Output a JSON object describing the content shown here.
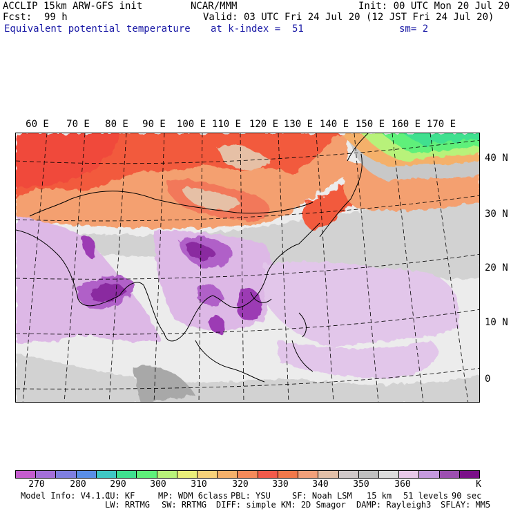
{
  "header": {
    "model": "ACCLIP 15km ARW-GFS init",
    "org": "NCAR/MMM",
    "init": "Init: 00 UTC Mon 20 Jul 20",
    "fcst_label": "Fcst:",
    "fcst_value": "99 h",
    "valid": "Valid: 03 UTC Fri 24 Jul 20 (12 JST Fri 24 Jul 20)",
    "field": "Equivalent potential temperature",
    "level": "at k-index =  51",
    "smooth": "sm= 2"
  },
  "map": {
    "lon_labels": [
      "60 E",
      "70 E",
      "80 E",
      "90 E",
      "100 E",
      "110 E",
      "120 E",
      "130 E",
      "140 E",
      "150 E",
      "160 E",
      "170 E"
    ],
    "lat_labels": [
      "40 N",
      "30 N",
      "20 N",
      "10 N",
      "0"
    ]
  },
  "colorbar": {
    "colors": [
      "#c55ccf",
      "#a46fd9",
      "#7f7fe0",
      "#5a8ee6",
      "#3fc7c4",
      "#3fe08f",
      "#5ef07a",
      "#b8f27a",
      "#eaef7a",
      "#f7d27a",
      "#f4b06a",
      "#f48a5a",
      "#f25a4a",
      "#f2784a",
      "#f2a07a",
      "#e3c0a8",
      "#d0c8c8",
      "#c0c0c0",
      "#dcdcdc",
      "#e8c8e8",
      "#c59ade",
      "#9c4fb0",
      "#7a0f88"
    ],
    "tick_labels": [
      "270",
      "280",
      "290",
      "300",
      "310",
      "320",
      "330",
      "340",
      "350",
      "360",
      "K"
    ]
  },
  "footer": {
    "model_info": "Model Info: V4.1.1",
    "cu": "CU: KF",
    "mp": "MP: WDM 6class",
    "pbl": "PBL: YSU",
    "sf": "SF: Noah LSM",
    "res": "15 km",
    "levels": "51 levels",
    "dt": "90 sec",
    "lw": "LW: RRTMG",
    "sw": "SW: RRTMG",
    "diff": "DIFF: simple KM: 2D Smagor",
    "damp": "DAMP: Rayleigh3",
    "sflay": "SFLAY: MM5"
  }
}
